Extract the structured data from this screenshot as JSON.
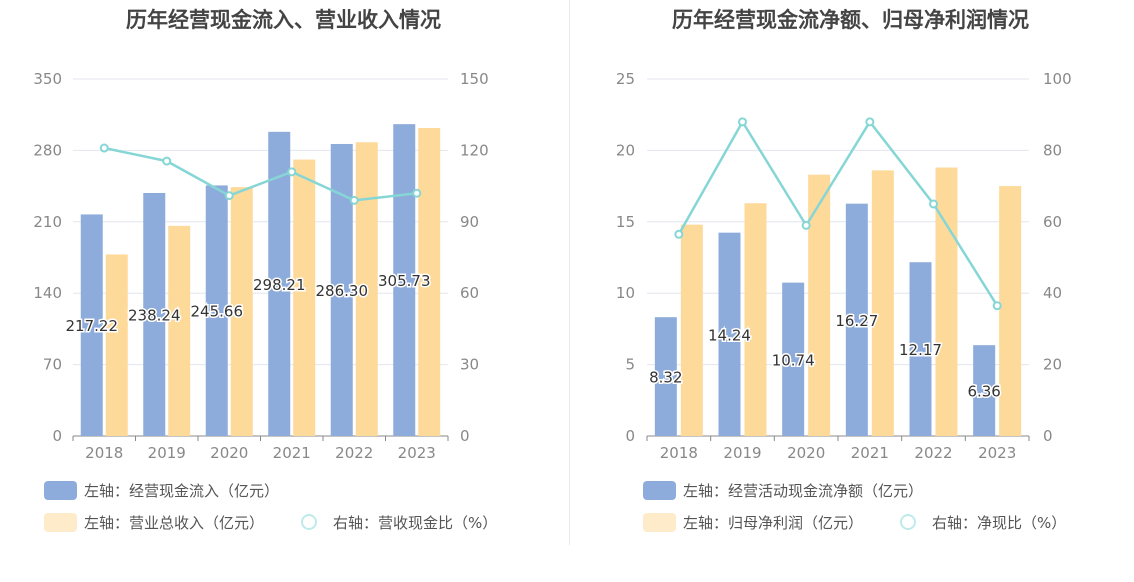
{
  "chart_data": [
    {
      "type": "bar",
      "title": "历年经营现金流入、营业收入情况",
      "categories": [
        "2018",
        "2019",
        "2020",
        "2021",
        "2022",
        "2023"
      ],
      "left_axis": {
        "ylim": [
          0,
          350
        ],
        "ticks": [
          0,
          70,
          140,
          210,
          280,
          350
        ]
      },
      "right_axis": {
        "ylim": [
          0,
          150
        ],
        "ticks": [
          0,
          30,
          60,
          90,
          120,
          150
        ]
      },
      "series": [
        {
          "name": "左轴：经营现金流入（亿元）",
          "axis": "left",
          "kind": "bar",
          "color": "#8eacdb",
          "values": [
            217.22,
            238.24,
            245.66,
            298.21,
            286.3,
            305.73
          ],
          "labels": [
            "217.22",
            "238.24",
            "245.66",
            "298.21",
            "286.30",
            "305.73"
          ]
        },
        {
          "name": "左轴：营业总收入（亿元）",
          "axis": "left",
          "kind": "bar",
          "color": "#fdd99a",
          "values": [
            178,
            206,
            244,
            271,
            288,
            302
          ]
        },
        {
          "name": "右轴：营收现金比（%）",
          "axis": "right",
          "kind": "line",
          "color": "#86d6d6",
          "values": [
            121,
            115.5,
            101,
            111,
            99,
            102
          ]
        }
      ],
      "grid": true,
      "legend_position": "bottom-left"
    },
    {
      "type": "bar",
      "title": "历年经营现金流净额、归母净利润情况",
      "categories": [
        "2018",
        "2019",
        "2020",
        "2021",
        "2022",
        "2023"
      ],
      "left_axis": {
        "ylim": [
          0,
          25
        ],
        "ticks": [
          0,
          5,
          10,
          15,
          20,
          25
        ]
      },
      "right_axis": {
        "ylim": [
          0,
          100
        ],
        "ticks": [
          0,
          20,
          40,
          60,
          80,
          100
        ]
      },
      "series": [
        {
          "name": "左轴：经营活动现金流净额（亿元）",
          "axis": "left",
          "kind": "bar",
          "color": "#8eacdb",
          "values": [
            8.32,
            14.24,
            10.74,
            16.27,
            12.17,
            6.36
          ],
          "labels": [
            "8.32",
            "14.24",
            "10.74",
            "16.27",
            "12.17",
            "6.36"
          ]
        },
        {
          "name": "左轴：归母净利润（亿元）",
          "axis": "left",
          "kind": "bar",
          "color": "#fdd99a",
          "values": [
            14.8,
            16.3,
            18.3,
            18.6,
            18.8,
            17.5
          ]
        },
        {
          "name": "右轴：净现比（%）",
          "axis": "right",
          "kind": "line",
          "color": "#86d6d6",
          "values": [
            56.5,
            88,
            59,
            88,
            65,
            36.5
          ]
        }
      ],
      "grid": true,
      "legend_position": "bottom-left"
    }
  ]
}
